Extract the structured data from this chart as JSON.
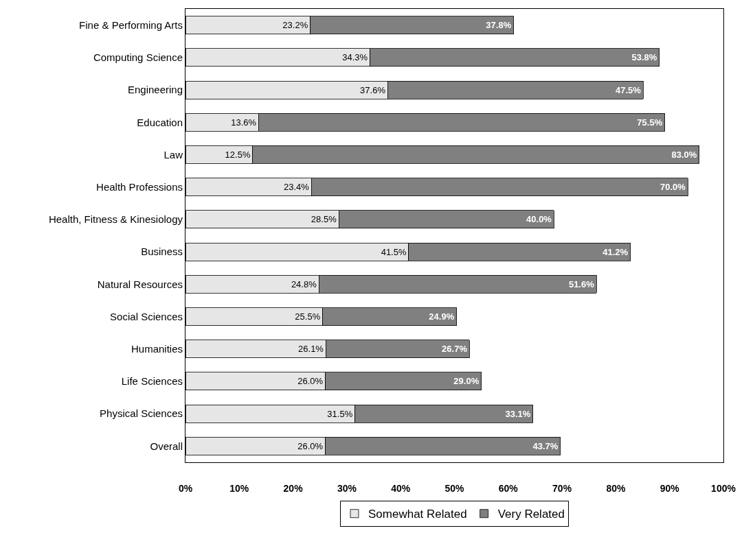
{
  "chart_data": {
    "type": "bar",
    "orientation": "horizontal",
    "stacked": true,
    "categories": [
      "Fine & Performing Arts",
      "Computing Science",
      "Engineering",
      "Education",
      "Law",
      "Health Professions",
      "Health, Fitness & Kinesiology",
      "Business",
      "Natural Resources",
      "Social Sciences",
      "Humanities",
      "Life Sciences",
      "Physical Sciences",
      "Overall"
    ],
    "series": [
      {
        "name": "Somewhat Related",
        "color": "#e6e6e6",
        "values": [
          23.2,
          34.3,
          37.6,
          13.6,
          12.5,
          23.4,
          28.5,
          41.5,
          24.8,
          25.5,
          26.1,
          26.0,
          31.5,
          26.0
        ],
        "value_labels": [
          "23.2%",
          "34.3%",
          "37.6%",
          "13.6%",
          "12.5%",
          "23.4%",
          "28.5%",
          "41.5%",
          "24.8%",
          "25.5%",
          "26.1%",
          "26.0%",
          "31.5%",
          "26.0%"
        ]
      },
      {
        "name": "Very Related",
        "color": "#808080",
        "values": [
          37.8,
          53.8,
          47.5,
          75.5,
          83.0,
          70.0,
          40.0,
          41.2,
          51.6,
          24.9,
          26.7,
          29.0,
          33.1,
          43.7
        ],
        "value_labels": [
          "37.8%",
          "53.8%",
          "47.5%",
          "75.5%",
          "83.0%",
          "70.0%",
          "40.0%",
          "41.2%",
          "51.6%",
          "24.9%",
          "26.7%",
          "29.0%",
          "33.1%",
          "43.7%"
        ]
      }
    ],
    "xlim": [
      0,
      100
    ],
    "xticks": [
      {
        "value": 0,
        "label": "0%"
      },
      {
        "value": 10,
        "label": "10%"
      },
      {
        "value": 20,
        "label": "20%"
      },
      {
        "value": 30,
        "label": "30%"
      },
      {
        "value": 40,
        "label": "40%"
      },
      {
        "value": 50,
        "label": "50%"
      },
      {
        "value": 60,
        "label": "60%"
      },
      {
        "value": 70,
        "label": "70%"
      },
      {
        "value": 80,
        "label": "80%"
      },
      {
        "value": 90,
        "label": "90%"
      },
      {
        "value": 100,
        "label": "100%"
      }
    ],
    "legend": "bottom"
  }
}
